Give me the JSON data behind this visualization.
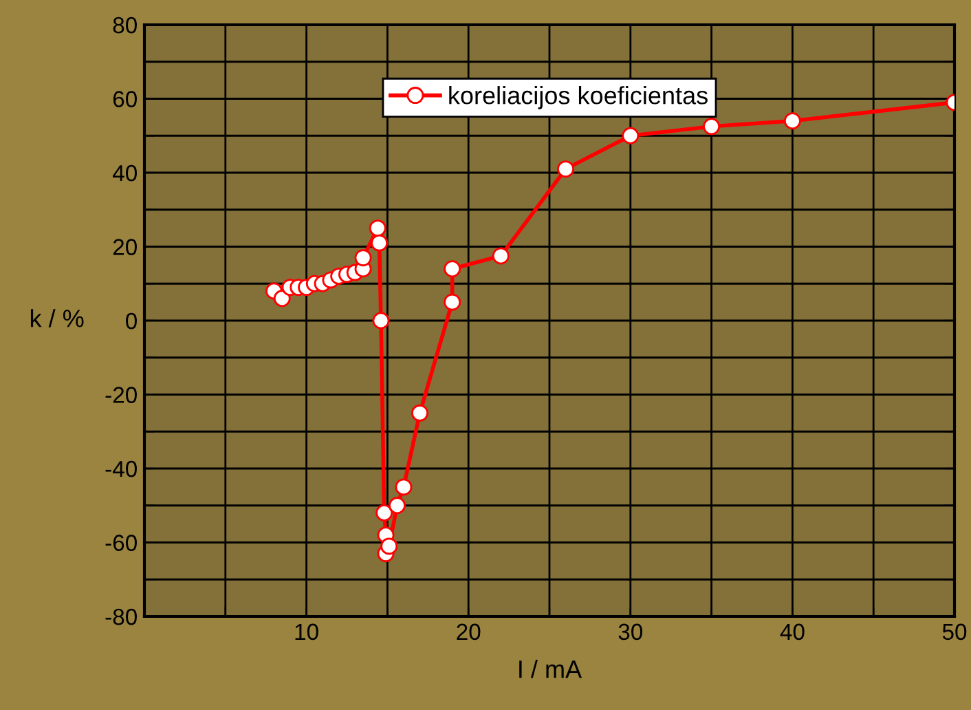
{
  "chart_data": {
    "type": "line",
    "xlabel": "I / mA",
    "ylabel": "k / %",
    "x": [
      8,
      8.5,
      9,
      9.5,
      10,
      10.5,
      11,
      11.5,
      12,
      12.5,
      13,
      13.5,
      13.5,
      14.4,
      14.5,
      14.6,
      14.8,
      14.9,
      14.9,
      15.1,
      15.6,
      16,
      17,
      19,
      19,
      22,
      26,
      30,
      35,
      40,
      50
    ],
    "series": [
      {
        "name": "koreliacijos koeficientas",
        "color": "#ff0000",
        "values": [
          8,
          6,
          9,
          9,
          9,
          10,
          10,
          11,
          12,
          12.5,
          13,
          14,
          17,
          25,
          21,
          0,
          -52,
          -58,
          -63,
          -61,
          -50,
          -45,
          -25,
          5,
          14,
          17.5,
          41,
          50,
          52.5,
          54,
          59
        ]
      }
    ],
    "xlim": [
      0,
      50
    ],
    "ylim": [
      -80,
      80
    ],
    "xticks": [
      {
        "value": 5,
        "label": null
      },
      10,
      {
        "value": 15,
        "label": null
      },
      20,
      {
        "value": 25,
        "label": null
      },
      30,
      {
        "value": 35,
        "label": null
      },
      40,
      {
        "value": 45,
        "label": null
      },
      50
    ],
    "yticks": [
      -80,
      {
        "value": -70,
        "label": null
      },
      -60,
      {
        "value": -50,
        "label": null
      },
      -40,
      {
        "value": -30,
        "label": null
      },
      -20,
      {
        "value": -10,
        "label": null
      },
      0,
      {
        "value": 10,
        "label": null
      },
      20,
      {
        "value": 30,
        "label": null
      },
      40,
      {
        "value": 50,
        "label": null
      },
      60,
      {
        "value": 70,
        "label": null
      },
      80
    ],
    "grid": true,
    "legend": "top",
    "marker": "circle",
    "line_style": "solid"
  }
}
